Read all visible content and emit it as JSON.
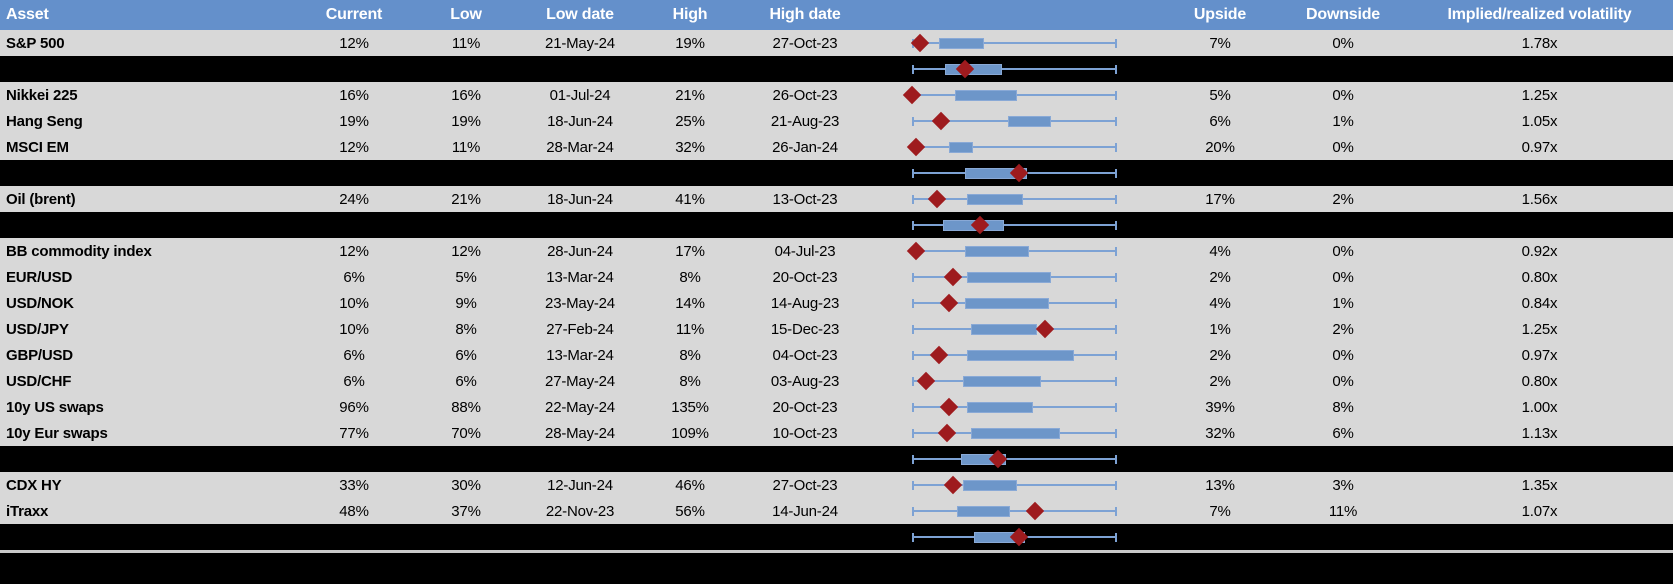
{
  "colors": {
    "header_bg": "#6490cb",
    "header_text": "#ffffff",
    "row_bg": "#d8d8d8",
    "separator_bg": "#000000",
    "text": "#000000",
    "whisker": "#7da2d4",
    "box_fill": "#6d96c9",
    "box_border": "#89a9d6",
    "marker": "#9e1b1e",
    "footer_line": "#c9c9c9"
  },
  "chart_data": {
    "type": "table",
    "columns": [
      "Asset",
      "Current",
      "Low",
      "Low date",
      "High",
      "High date",
      "",
      "Upside",
      "Downside",
      "Implied/realized volatility"
    ],
    "embedded_plot": {
      "type": "box-range",
      "track_range": [
        0,
        1
      ],
      "marker_glyph": "diamond",
      "legend_position": "none",
      "grid": false
    },
    "rows": [
      {
        "type": "data",
        "asset": "S&P 500",
        "current": "12%",
        "low": "11%",
        "low_date": "21-May-24",
        "high": "19%",
        "high_date": "27-Oct-23",
        "upside": "7%",
        "downside": "0%",
        "implied_realized": "1.78x",
        "plot": {
          "box": [
            0.13,
            0.35
          ],
          "marker": 0.04
        }
      },
      {
        "type": "separator",
        "plot": {
          "box": [
            0.16,
            0.44
          ],
          "marker": 0.26
        }
      },
      {
        "type": "data",
        "asset": "Nikkei 225",
        "current": "16%",
        "low": "16%",
        "low_date": "01-Jul-24",
        "high": "21%",
        "high_date": "26-Oct-23",
        "upside": "5%",
        "downside": "0%",
        "implied_realized": "1.25x",
        "plot": {
          "box": [
            0.21,
            0.51
          ],
          "marker": 0.0
        }
      },
      {
        "type": "data",
        "asset": "Hang Seng",
        "current": "19%",
        "low": "19%",
        "low_date": "18-Jun-24",
        "high": "25%",
        "high_date": "21-Aug-23",
        "upside": "6%",
        "downside": "1%",
        "implied_realized": "1.05x",
        "plot": {
          "box": [
            0.47,
            0.68
          ],
          "marker": 0.14
        }
      },
      {
        "type": "data",
        "asset": "MSCI EM",
        "current": "12%",
        "low": "11%",
        "low_date": "28-Mar-24",
        "high": "32%",
        "high_date": "26-Jan-24",
        "upside": "20%",
        "downside": "0%",
        "implied_realized": "0.97x",
        "plot": {
          "box": [
            0.18,
            0.3
          ],
          "marker": 0.02
        }
      },
      {
        "type": "separator",
        "plot": {
          "box": [
            0.26,
            0.56
          ],
          "marker": 0.52
        }
      },
      {
        "type": "data",
        "asset": "Oil (brent)",
        "current": "24%",
        "low": "21%",
        "low_date": "18-Jun-24",
        "high": "41%",
        "high_date": "13-Oct-23",
        "upside": "17%",
        "downside": "2%",
        "implied_realized": "1.56x",
        "plot": {
          "box": [
            0.27,
            0.54
          ],
          "marker": 0.12
        }
      },
      {
        "type": "separator",
        "plot": {
          "box": [
            0.15,
            0.45
          ],
          "marker": 0.33
        }
      },
      {
        "type": "data",
        "asset": "BB commodity index",
        "current": "12%",
        "low": "12%",
        "low_date": "28-Jun-24",
        "high": "17%",
        "high_date": "04-Jul-23",
        "upside": "4%",
        "downside": "0%",
        "implied_realized": "0.92x",
        "plot": {
          "box": [
            0.26,
            0.57
          ],
          "marker": 0.02
        }
      },
      {
        "type": "data",
        "asset": "EUR/USD",
        "current": "6%",
        "low": "5%",
        "low_date": "13-Mar-24",
        "high": "8%",
        "high_date": "20-Oct-23",
        "upside": "2%",
        "downside": "0%",
        "implied_realized": "0.80x",
        "plot": {
          "box": [
            0.27,
            0.68
          ],
          "marker": 0.2
        }
      },
      {
        "type": "data",
        "asset": "USD/NOK",
        "current": "10%",
        "low": "9%",
        "low_date": "23-May-24",
        "high": "14%",
        "high_date": "14-Aug-23",
        "upside": "4%",
        "downside": "1%",
        "implied_realized": "0.84x",
        "plot": {
          "box": [
            0.26,
            0.67
          ],
          "marker": 0.18
        }
      },
      {
        "type": "data",
        "asset": "USD/JPY",
        "current": "10%",
        "low": "8%",
        "low_date": "27-Feb-24",
        "high": "11%",
        "high_date": "15-Dec-23",
        "upside": "1%",
        "downside": "2%",
        "implied_realized": "1.25x",
        "plot": {
          "box": [
            0.29,
            0.61
          ],
          "marker": 0.65
        }
      },
      {
        "type": "data",
        "asset": "GBP/USD",
        "current": "6%",
        "low": "6%",
        "low_date": "13-Mar-24",
        "high": "8%",
        "high_date": "04-Oct-23",
        "upside": "2%",
        "downside": "0%",
        "implied_realized": "0.97x",
        "plot": {
          "box": [
            0.27,
            0.79
          ],
          "marker": 0.13
        }
      },
      {
        "type": "data",
        "asset": "USD/CHF",
        "current": "6%",
        "low": "6%",
        "low_date": "27-May-24",
        "high": "8%",
        "high_date": "03-Aug-23",
        "upside": "2%",
        "downside": "0%",
        "implied_realized": "0.80x",
        "plot": {
          "box": [
            0.25,
            0.63
          ],
          "marker": 0.07
        }
      },
      {
        "type": "data",
        "asset": "10y US swaps",
        "current": "96%",
        "low": "88%",
        "low_date": "22-May-24",
        "high": "135%",
        "high_date": "20-Oct-23",
        "upside": "39%",
        "downside": "8%",
        "implied_realized": "1.00x",
        "plot": {
          "box": [
            0.27,
            0.59
          ],
          "marker": 0.18
        }
      },
      {
        "type": "data",
        "asset": "10y Eur swaps",
        "current": "77%",
        "low": "70%",
        "low_date": "28-May-24",
        "high": "109%",
        "high_date": "10-Oct-23",
        "upside": "32%",
        "downside": "6%",
        "implied_realized": "1.13x",
        "plot": {
          "box": [
            0.29,
            0.72
          ],
          "marker": 0.17
        }
      },
      {
        "type": "separator",
        "plot": {
          "box": [
            0.24,
            0.46
          ],
          "marker": 0.42
        }
      },
      {
        "type": "data",
        "asset": "CDX HY",
        "current": "33%",
        "low": "30%",
        "low_date": "12-Jun-24",
        "high": "46%",
        "high_date": "27-Oct-23",
        "upside": "13%",
        "downside": "3%",
        "implied_realized": "1.35x",
        "plot": {
          "box": [
            0.25,
            0.51
          ],
          "marker": 0.2
        }
      },
      {
        "type": "data",
        "asset": "iTraxx",
        "current": "48%",
        "low": "37%",
        "low_date": "22-Nov-23",
        "high": "56%",
        "high_date": "14-Jun-24",
        "upside": "7%",
        "downside": "11%",
        "implied_realized": "1.07x",
        "plot": {
          "box": [
            0.22,
            0.48
          ],
          "marker": 0.6
        }
      },
      {
        "type": "separator",
        "plot": {
          "box": [
            0.3,
            0.55
          ],
          "marker": 0.52
        }
      }
    ]
  }
}
